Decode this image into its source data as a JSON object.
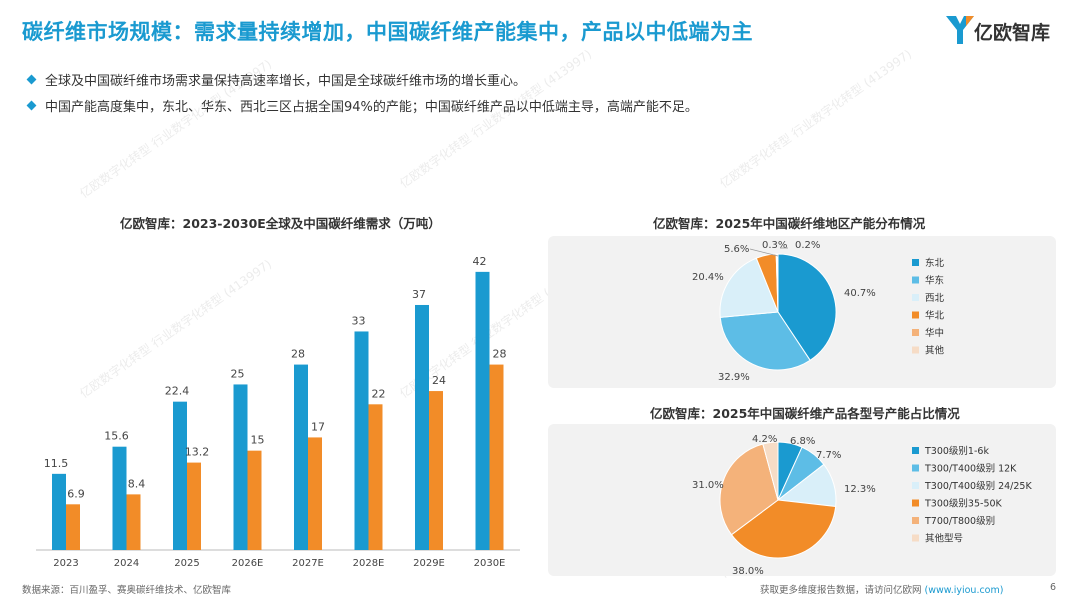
{
  "header": {
    "title": "碳纤维市场规模：需求量持续增加，中国碳纤维产能集中，产品以中低端为主",
    "logo_text": "亿欧智库"
  },
  "bullets": [
    "全球及中国碳纤维市场需求量保持高速率增长，中国是全球碳纤维市场的增长重心。",
    "中国产能高度集中，东北、华东、西北三区占据全国94%的产能；中国碳纤维产品以中低端主导，高端产能不足。"
  ],
  "colors": {
    "accent": "#1a9ad0",
    "orange": "#f28c28"
  },
  "chart_data": [
    {
      "type": "bar",
      "title": "亿欧智库：2023-2030E全球及中国碳纤维需求（万吨）",
      "categories": [
        "2023",
        "2024",
        "2025",
        "2026E",
        "2027E",
        "2028E",
        "2029E",
        "2030E"
      ],
      "series": [
        {
          "values": [
            11.5,
            15.6,
            22.4,
            25,
            28,
            33,
            37,
            42
          ],
          "color": "#1a9ad0"
        },
        {
          "values": [
            6.9,
            8.4,
            13.2,
            15,
            17,
            22,
            24,
            28
          ],
          "color": "#f28c28"
        }
      ],
      "ylim": [
        0,
        45
      ],
      "grid": false
    },
    {
      "type": "pie",
      "title": "亿欧智库：2025年中国碳纤维地区产能分布情况",
      "labels": [
        "东北",
        "华东",
        "西北",
        "华北",
        "华中",
        "其他"
      ],
      "values": [
        40.7,
        32.9,
        20.4,
        5.6,
        0.3,
        0.2
      ],
      "value_labels": [
        "40.7%",
        "32.9%",
        "20.4%",
        "5.6%",
        "0.3%",
        "0.2%"
      ],
      "colors": [
        "#1a9ad0",
        "#5dbde6",
        "#d9eff9",
        "#f28c28",
        "#f4b27a",
        "#f6dcc6"
      ],
      "legend": "right"
    },
    {
      "type": "pie",
      "title": "亿欧智库：2025年中国碳纤维产品各型号产能占比情况",
      "labels": [
        "T300级别1-6k",
        "T300/T400级别 12K",
        "T300/T400级别 24/25K",
        "T300级别35-50K",
        "T700/T800级别",
        "其他型号"
      ],
      "values": [
        6.8,
        7.7,
        12.3,
        38.0,
        31.0,
        4.2
      ],
      "value_labels": [
        "6.8%",
        "7.7%",
        "12.3%",
        "38.0%",
        "31.0%",
        "4.2%"
      ],
      "colors": [
        "#1a9ad0",
        "#5dbde6",
        "#d9eff9",
        "#f28c28",
        "#f4b27a",
        "#f6dcc6"
      ],
      "legend": "right"
    }
  ],
  "footer": {
    "source": "数据来源：百川盈孚、赛奥碳纤维技术、亿欧智库",
    "promo": "获取更多维度报告数据，请访问亿欧网",
    "url": "(www.iyiou.com)",
    "page": "6"
  },
  "watermark": "亿欧数字化转型 行业数字化转型 (413997)"
}
